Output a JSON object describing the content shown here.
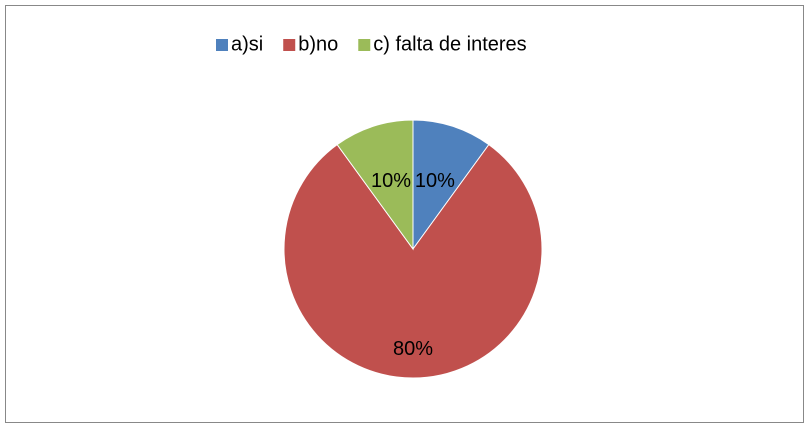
{
  "chart_data": {
    "type": "pie",
    "categories": [
      "a)si",
      "b)no",
      "c) falta de interes"
    ],
    "values": [
      10,
      80,
      10
    ],
    "value_labels": [
      "10%",
      "80%",
      "10%"
    ],
    "colors": [
      "#4f81bd",
      "#c0504d",
      "#9bbb59"
    ],
    "legend": "top"
  }
}
